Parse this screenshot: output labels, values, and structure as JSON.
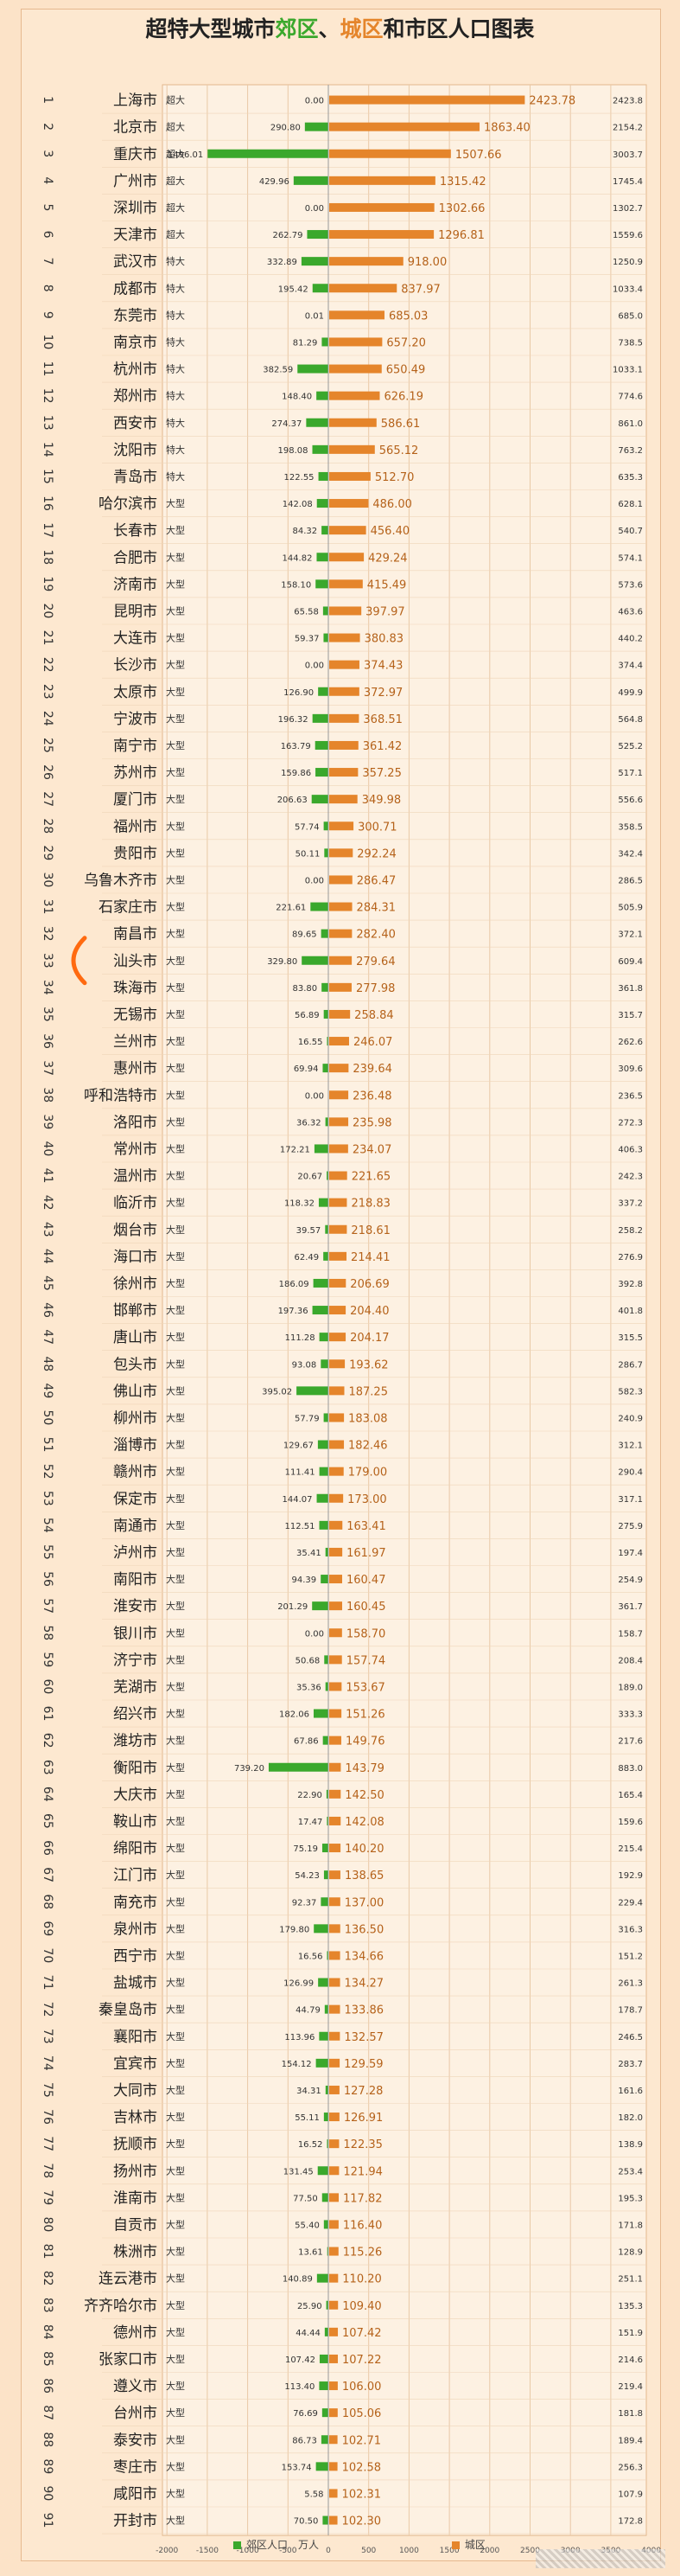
{
  "title_parts": [
    "超特大型城市",
    "郊区",
    "、",
    "城区",
    "和市区人口图表"
  ],
  "legend": [
    {
      "label": "郊区人口　万人",
      "color": "#3aa82c"
    },
    {
      "label": "城区",
      "color": "#e5852b"
    }
  ],
  "colors": {
    "suburb": "#3aa82c",
    "urban": "#e5852b",
    "background": "#fde8d0",
    "grid": "#e9c9a6"
  },
  "chart_data": {
    "type": "bar",
    "title": "超特大型城市郊区、城区和市区人口图表",
    "xlim": [
      -2000,
      4000
    ],
    "xticks": [
      -2000,
      -1500,
      -1000,
      -500,
      0,
      500,
      1000,
      1500,
      2000,
      2500,
      3000,
      3500,
      4000
    ],
    "series": [
      {
        "name": "郊区人口　万人",
        "direction": "negative"
      },
      {
        "name": "城区",
        "direction": "positive"
      }
    ],
    "rows": [
      {
        "rank": 1,
        "city": "上海市",
        "class": "超大",
        "suburb": 0.0,
        "urban": 2423.78,
        "total": 2423.8
      },
      {
        "rank": 2,
        "city": "北京市",
        "class": "超大",
        "suburb": 290.8,
        "urban": 1863.4,
        "total": 2154.2
      },
      {
        "rank": 3,
        "city": "重庆市",
        "class": "超大",
        "suburb": 1496.01,
        "urban": 1507.66,
        "total": 3003.7
      },
      {
        "rank": 4,
        "city": "广州市",
        "class": "超大",
        "suburb": 429.96,
        "urban": 1315.42,
        "total": 1745.4
      },
      {
        "rank": 5,
        "city": "深圳市",
        "class": "超大",
        "suburb": 0.0,
        "urban": 1302.66,
        "total": 1302.7
      },
      {
        "rank": 6,
        "city": "天津市",
        "class": "超大",
        "suburb": 262.79,
        "urban": 1296.81,
        "total": 1559.6
      },
      {
        "rank": 7,
        "city": "武汉市",
        "class": "特大",
        "suburb": 332.89,
        "urban": 918.0,
        "total": 1250.9
      },
      {
        "rank": 8,
        "city": "成都市",
        "class": "特大",
        "suburb": 195.42,
        "urban": 837.97,
        "total": 1033.4
      },
      {
        "rank": 9,
        "city": "东莞市",
        "class": "特大",
        "suburb": 0.01,
        "urban": 685.03,
        "total": 685.0
      },
      {
        "rank": 10,
        "city": "南京市",
        "class": "特大",
        "suburb": 81.29,
        "urban": 657.2,
        "total": 738.5
      },
      {
        "rank": 11,
        "city": "杭州市",
        "class": "特大",
        "suburb": 382.59,
        "urban": 650.49,
        "total": 1033.1
      },
      {
        "rank": 12,
        "city": "郑州市",
        "class": "特大",
        "suburb": 148.4,
        "urban": 626.19,
        "total": 774.6
      },
      {
        "rank": 13,
        "city": "西安市",
        "class": "特大",
        "suburb": 274.37,
        "urban": 586.61,
        "total": 861.0
      },
      {
        "rank": 14,
        "city": "沈阳市",
        "class": "特大",
        "suburb": 198.08,
        "urban": 565.12,
        "total": 763.2
      },
      {
        "rank": 15,
        "city": "青岛市",
        "class": "特大",
        "suburb": 122.55,
        "urban": 512.7,
        "total": 635.3
      },
      {
        "rank": 16,
        "city": "哈尔滨市",
        "class": "大型",
        "suburb": 142.08,
        "urban": 486.0,
        "total": 628.1
      },
      {
        "rank": 17,
        "city": "长春市",
        "class": "大型",
        "suburb": 84.32,
        "urban": 456.4,
        "total": 540.7
      },
      {
        "rank": 18,
        "city": "合肥市",
        "class": "大型",
        "suburb": 144.82,
        "urban": 429.24,
        "total": 574.1
      },
      {
        "rank": 19,
        "city": "济南市",
        "class": "大型",
        "suburb": 158.1,
        "urban": 415.49,
        "total": 573.6
      },
      {
        "rank": 20,
        "city": "昆明市",
        "class": "大型",
        "suburb": 65.58,
        "urban": 397.97,
        "total": 463.6
      },
      {
        "rank": 21,
        "city": "大连市",
        "class": "大型",
        "suburb": 59.37,
        "urban": 380.83,
        "total": 440.2
      },
      {
        "rank": 22,
        "city": "长沙市",
        "class": "大型",
        "suburb": 0.0,
        "urban": 374.43,
        "total": 374.4
      },
      {
        "rank": 23,
        "city": "太原市",
        "class": "大型",
        "suburb": 126.9,
        "urban": 372.97,
        "total": 499.9
      },
      {
        "rank": 24,
        "city": "宁波市",
        "class": "大型",
        "suburb": 196.32,
        "urban": 368.51,
        "total": 564.8
      },
      {
        "rank": 25,
        "city": "南宁市",
        "class": "大型",
        "suburb": 163.79,
        "urban": 361.42,
        "total": 525.2
      },
      {
        "rank": 26,
        "city": "苏州市",
        "class": "大型",
        "suburb": 159.86,
        "urban": 357.25,
        "total": 517.1
      },
      {
        "rank": 27,
        "city": "厦门市",
        "class": "大型",
        "suburb": 206.63,
        "urban": 349.98,
        "total": 556.6
      },
      {
        "rank": 28,
        "city": "福州市",
        "class": "大型",
        "suburb": 57.74,
        "urban": 300.71,
        "total": 358.5
      },
      {
        "rank": 29,
        "city": "贵阳市",
        "class": "大型",
        "suburb": 50.11,
        "urban": 292.24,
        "total": 342.4
      },
      {
        "rank": 30,
        "city": "乌鲁木齐市",
        "class": "大型",
        "suburb": 0.0,
        "urban": 286.47,
        "total": 286.5
      },
      {
        "rank": 31,
        "city": "石家庄市",
        "class": "大型",
        "suburb": 221.61,
        "urban": 284.31,
        "total": 505.9
      },
      {
        "rank": 32,
        "city": "南昌市",
        "class": "大型",
        "suburb": 89.65,
        "urban": 282.4,
        "total": 372.1
      },
      {
        "rank": 33,
        "city": "汕头市",
        "class": "大型",
        "suburb": 329.8,
        "urban": 279.64,
        "total": 609.4
      },
      {
        "rank": 34,
        "city": "珠海市",
        "class": "大型",
        "suburb": 83.8,
        "urban": 277.98,
        "total": 361.8
      },
      {
        "rank": 35,
        "city": "无锡市",
        "class": "大型",
        "suburb": 56.89,
        "urban": 258.84,
        "total": 315.7
      },
      {
        "rank": 36,
        "city": "兰州市",
        "class": "大型",
        "suburb": 16.55,
        "urban": 246.07,
        "total": 262.6
      },
      {
        "rank": 37,
        "city": "惠州市",
        "class": "大型",
        "suburb": 69.94,
        "urban": 239.64,
        "total": 309.6
      },
      {
        "rank": 38,
        "city": "呼和浩特市",
        "class": "大型",
        "suburb": 0.0,
        "urban": 236.48,
        "total": 236.5
      },
      {
        "rank": 39,
        "city": "洛阳市",
        "class": "大型",
        "suburb": 36.32,
        "urban": 235.98,
        "total": 272.3
      },
      {
        "rank": 40,
        "city": "常州市",
        "class": "大型",
        "suburb": 172.21,
        "urban": 234.07,
        "total": 406.3
      },
      {
        "rank": 41,
        "city": "温州市",
        "class": "大型",
        "suburb": 20.67,
        "urban": 221.65,
        "total": 242.3
      },
      {
        "rank": 42,
        "city": "临沂市",
        "class": "大型",
        "suburb": 118.32,
        "urban": 218.83,
        "total": 337.2
      },
      {
        "rank": 43,
        "city": "烟台市",
        "class": "大型",
        "suburb": 39.57,
        "urban": 218.61,
        "total": 258.2
      },
      {
        "rank": 44,
        "city": "海口市",
        "class": "大型",
        "suburb": 62.49,
        "urban": 214.41,
        "total": 276.9
      },
      {
        "rank": 45,
        "city": "徐州市",
        "class": "大型",
        "suburb": 186.09,
        "urban": 206.69,
        "total": 392.8
      },
      {
        "rank": 46,
        "city": "邯郸市",
        "class": "大型",
        "suburb": 197.36,
        "urban": 204.4,
        "total": 401.8
      },
      {
        "rank": 47,
        "city": "唐山市",
        "class": "大型",
        "suburb": 111.28,
        "urban": 204.17,
        "total": 315.5
      },
      {
        "rank": 48,
        "city": "包头市",
        "class": "大型",
        "suburb": 93.08,
        "urban": 193.62,
        "total": 286.7
      },
      {
        "rank": 49,
        "city": "佛山市",
        "class": "大型",
        "suburb": 395.02,
        "urban": 187.25,
        "total": 582.3
      },
      {
        "rank": 50,
        "city": "柳州市",
        "class": "大型",
        "suburb": 57.79,
        "urban": 183.08,
        "total": 240.9
      },
      {
        "rank": 51,
        "city": "淄博市",
        "class": "大型",
        "suburb": 129.67,
        "urban": 182.46,
        "total": 312.1
      },
      {
        "rank": 52,
        "city": "赣州市",
        "class": "大型",
        "suburb": 111.41,
        "urban": 179.0,
        "total": 290.4
      },
      {
        "rank": 53,
        "city": "保定市",
        "class": "大型",
        "suburb": 144.07,
        "urban": 173.0,
        "total": 317.1
      },
      {
        "rank": 54,
        "city": "南通市",
        "class": "大型",
        "suburb": 112.51,
        "urban": 163.41,
        "total": 275.9
      },
      {
        "rank": 55,
        "city": "泸州市",
        "class": "大型",
        "suburb": 35.41,
        "urban": 161.97,
        "total": 197.4
      },
      {
        "rank": 56,
        "city": "南阳市",
        "class": "大型",
        "suburb": 94.39,
        "urban": 160.47,
        "total": 254.9
      },
      {
        "rank": 57,
        "city": "淮安市",
        "class": "大型",
        "suburb": 201.29,
        "urban": 160.45,
        "total": 361.7
      },
      {
        "rank": 58,
        "city": "银川市",
        "class": "大型",
        "suburb": 0.0,
        "urban": 158.7,
        "total": 158.7
      },
      {
        "rank": 59,
        "city": "济宁市",
        "class": "大型",
        "suburb": 50.68,
        "urban": 157.74,
        "total": 208.4
      },
      {
        "rank": 60,
        "city": "芜湖市",
        "class": "大型",
        "suburb": 35.36,
        "urban": 153.67,
        "total": 189.0
      },
      {
        "rank": 61,
        "city": "绍兴市",
        "class": "大型",
        "suburb": 182.06,
        "urban": 151.26,
        "total": 333.3
      },
      {
        "rank": 62,
        "city": "潍坊市",
        "class": "大型",
        "suburb": 67.86,
        "urban": 149.76,
        "total": 217.6
      },
      {
        "rank": 63,
        "city": "衡阳市",
        "class": "大型",
        "suburb": 739.2,
        "urban": 143.79,
        "total": 883.0
      },
      {
        "rank": 64,
        "city": "大庆市",
        "class": "大型",
        "suburb": 22.9,
        "urban": 142.5,
        "total": 165.4
      },
      {
        "rank": 65,
        "city": "鞍山市",
        "class": "大型",
        "suburb": 17.47,
        "urban": 142.08,
        "total": 159.6
      },
      {
        "rank": 66,
        "city": "绵阳市",
        "class": "大型",
        "suburb": 75.19,
        "urban": 140.2,
        "total": 215.4
      },
      {
        "rank": 67,
        "city": "江门市",
        "class": "大型",
        "suburb": 54.23,
        "urban": 138.65,
        "total": 192.9
      },
      {
        "rank": 68,
        "city": "南充市",
        "class": "大型",
        "suburb": 92.37,
        "urban": 137.0,
        "total": 229.4
      },
      {
        "rank": 69,
        "city": "泉州市",
        "class": "大型",
        "suburb": 179.8,
        "urban": 136.5,
        "total": 316.3
      },
      {
        "rank": 70,
        "city": "西宁市",
        "class": "大型",
        "suburb": 16.56,
        "urban": 134.66,
        "total": 151.2
      },
      {
        "rank": 71,
        "city": "盐城市",
        "class": "大型",
        "suburb": 126.99,
        "urban": 134.27,
        "total": 261.3
      },
      {
        "rank": 72,
        "city": "秦皇岛市",
        "class": "大型",
        "suburb": 44.79,
        "urban": 133.86,
        "total": 178.7
      },
      {
        "rank": 73,
        "city": "襄阳市",
        "class": "大型",
        "suburb": 113.96,
        "urban": 132.57,
        "total": 246.5
      },
      {
        "rank": 74,
        "city": "宜宾市",
        "class": "大型",
        "suburb": 154.12,
        "urban": 129.59,
        "total": 283.7
      },
      {
        "rank": 75,
        "city": "大同市",
        "class": "大型",
        "suburb": 34.31,
        "urban": 127.28,
        "total": 161.6
      },
      {
        "rank": 76,
        "city": "吉林市",
        "class": "大型",
        "suburb": 55.11,
        "urban": 126.91,
        "total": 182.0
      },
      {
        "rank": 77,
        "city": "抚顺市",
        "class": "大型",
        "suburb": 16.52,
        "urban": 122.35,
        "total": 138.9
      },
      {
        "rank": 78,
        "city": "扬州市",
        "class": "大型",
        "suburb": 131.45,
        "urban": 121.94,
        "total": 253.4
      },
      {
        "rank": 79,
        "city": "淮南市",
        "class": "大型",
        "suburb": 77.5,
        "urban": 117.82,
        "total": 195.3
      },
      {
        "rank": 80,
        "city": "自贡市",
        "class": "大型",
        "suburb": 55.4,
        "urban": 116.4,
        "total": 171.8
      },
      {
        "rank": 81,
        "city": "株洲市",
        "class": "大型",
        "suburb": 13.61,
        "urban": 115.26,
        "total": 128.9
      },
      {
        "rank": 82,
        "city": "连云港市",
        "class": "大型",
        "suburb": 140.89,
        "urban": 110.2,
        "total": 251.1
      },
      {
        "rank": 83,
        "city": "齐齐哈尔市",
        "class": "大型",
        "suburb": 25.9,
        "urban": 109.4,
        "total": 135.3
      },
      {
        "rank": 84,
        "city": "德州市",
        "class": "大型",
        "suburb": 44.44,
        "urban": 107.42,
        "total": 151.9
      },
      {
        "rank": 85,
        "city": "张家口市",
        "class": "大型",
        "suburb": 107.42,
        "urban": 107.22,
        "total": 214.6
      },
      {
        "rank": 86,
        "city": "遵义市",
        "class": "大型",
        "suburb": 113.4,
        "urban": 106.0,
        "total": 219.4
      },
      {
        "rank": 87,
        "city": "台州市",
        "class": "大型",
        "suburb": 76.69,
        "urban": 105.06,
        "total": 181.8
      },
      {
        "rank": 88,
        "city": "泰安市",
        "class": "大型",
        "suburb": 86.73,
        "urban": 102.71,
        "total": 189.4
      },
      {
        "rank": 89,
        "city": "枣庄市",
        "class": "大型",
        "suburb": 153.74,
        "urban": 102.58,
        "total": 256.3
      },
      {
        "rank": 90,
        "city": "咸阳市",
        "class": "大型",
        "suburb": 5.58,
        "urban": 102.31,
        "total": 107.9
      },
      {
        "rank": 91,
        "city": "开封市",
        "class": "大型",
        "suburb": 70.5,
        "urban": 102.3,
        "total": 172.8
      }
    ]
  }
}
